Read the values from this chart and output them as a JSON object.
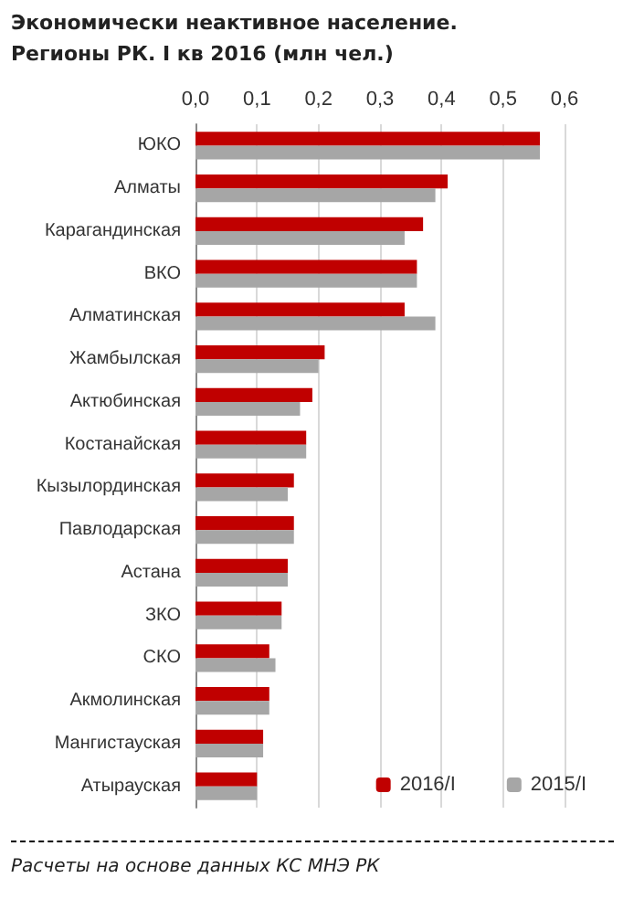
{
  "chart_data": {
    "type": "bar",
    "orientation": "horizontal",
    "title": "Экономически неактивное население. Регионы РК. I кв 2016 (млн чел.)",
    "categories": [
      "ЮКО",
      "Алматы",
      "Карагандинская",
      "ВКО",
      "Алматинская",
      "Жамбылская",
      "Актюбинская",
      "Костанайская",
      "Кызылординская",
      "Павлодарская",
      "Астана",
      "ЗКО",
      "СКО",
      "Акмолинская",
      "Мангистауская",
      "Атырауская"
    ],
    "series": [
      {
        "name": "2016/I",
        "color": "#c00000",
        "values": [
          0.56,
          0.41,
          0.37,
          0.36,
          0.34,
          0.21,
          0.19,
          0.18,
          0.16,
          0.16,
          0.15,
          0.14,
          0.12,
          0.12,
          0.11,
          0.1
        ]
      },
      {
        "name": "2015/I",
        "color": "#a6a6a6",
        "values": [
          0.56,
          0.39,
          0.34,
          0.36,
          0.39,
          0.2,
          0.17,
          0.18,
          0.15,
          0.16,
          0.15,
          0.14,
          0.13,
          0.12,
          0.11,
          0.1
        ]
      }
    ],
    "xlim": [
      0,
      0.6
    ],
    "xticks": [
      {
        "value": 0,
        "label": "0,0"
      },
      {
        "value": 0.1,
        "label": "0,1"
      },
      {
        "value": 0.2,
        "label": "0,2"
      },
      {
        "value": 0.3,
        "label": "0,3"
      },
      {
        "value": 0.4,
        "label": "0,4"
      },
      {
        "value": 0.5,
        "label": "0,5"
      },
      {
        "value": 0.6,
        "label": "0,6"
      }
    ],
    "grid": "x",
    "legend": "bottom right",
    "annotations": [
      "Расчеты на основе данных КС МНЭ РК"
    ]
  }
}
